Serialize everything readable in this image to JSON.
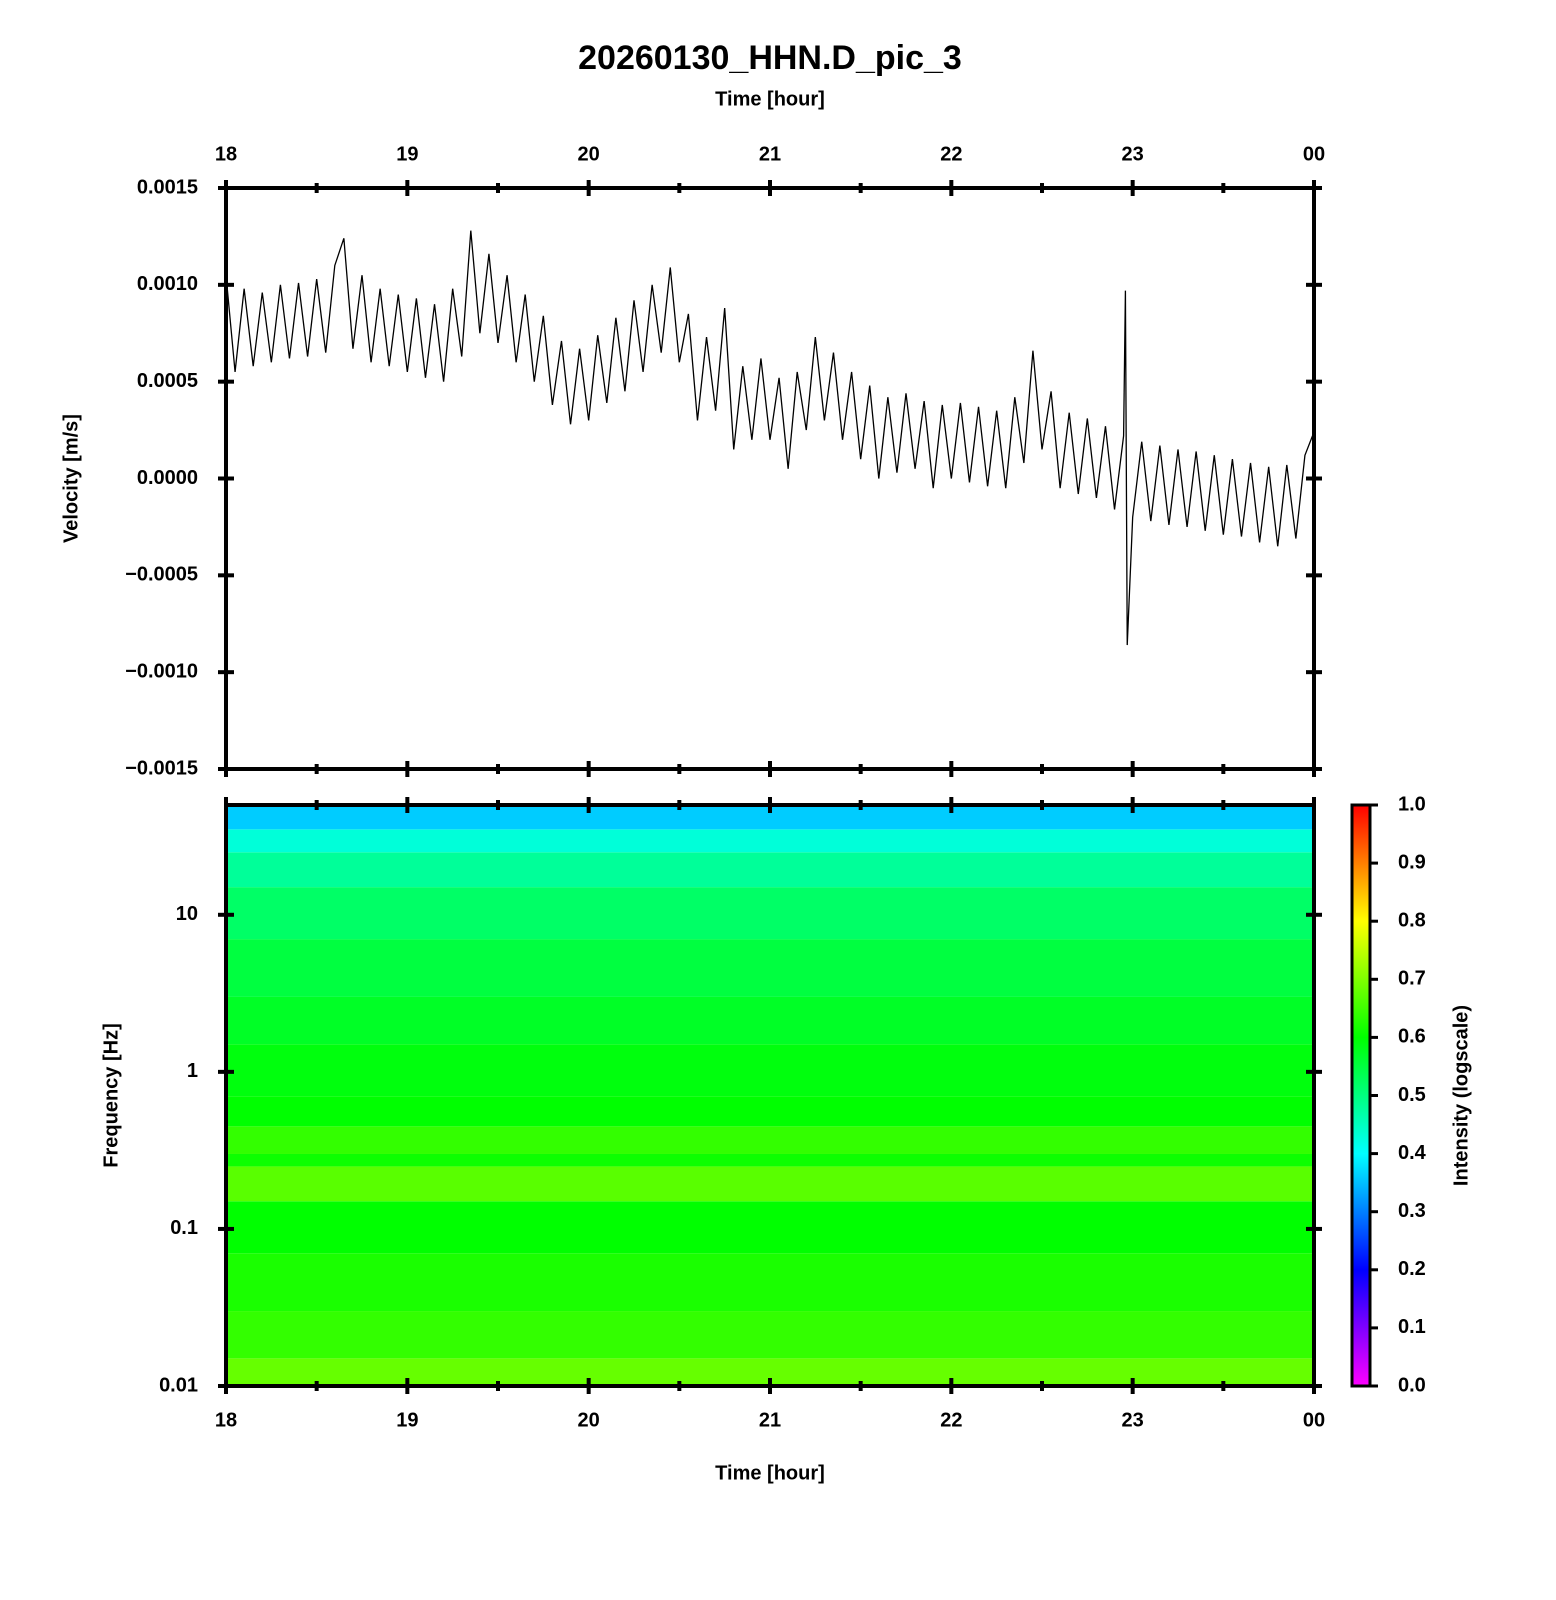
{
  "chart_data": [
    {
      "type": "line",
      "title": "20260130_HHN.D_pic_3",
      "xlabel": "Time [hour]",
      "ylabel": "Velocity [m/s]",
      "color": "#000000",
      "x": [
        18,
        18.05,
        18.1,
        18.15,
        18.2,
        18.25,
        18.3,
        18.35,
        18.4,
        18.45,
        18.5,
        18.55,
        18.6,
        18.65,
        18.7,
        18.75,
        18.8,
        18.85,
        18.9,
        18.95,
        19,
        19.05,
        19.1,
        19.15,
        19.2,
        19.25,
        19.3,
        19.35,
        19.4,
        19.45,
        19.5,
        19.55,
        19.6,
        19.65,
        19.7,
        19.75,
        19.8,
        19.85,
        19.9,
        19.95,
        20,
        20.05,
        20.1,
        20.15,
        20.2,
        20.25,
        20.3,
        20.35,
        20.4,
        20.45,
        20.5,
        20.55,
        20.6,
        20.65,
        20.7,
        20.75,
        20.8,
        20.85,
        20.9,
        20.95,
        21,
        21.05,
        21.1,
        21.15,
        21.2,
        21.25,
        21.3,
        21.35,
        21.4,
        21.45,
        21.5,
        21.55,
        21.6,
        21.65,
        21.7,
        21.75,
        21.8,
        21.85,
        21.9,
        21.95,
        22,
        22.05,
        22.1,
        22.15,
        22.2,
        22.25,
        22.3,
        22.35,
        22.4,
        22.45,
        22.5,
        22.55,
        22.6,
        22.65,
        22.7,
        22.75,
        22.8,
        22.85,
        22.9,
        22.95,
        22.96,
        22.97,
        23,
        23.05,
        23.1,
        23.15,
        23.2,
        23.25,
        23.3,
        23.35,
        23.4,
        23.45,
        23.5,
        23.55,
        23.6,
        23.65,
        23.7,
        23.75,
        23.8,
        23.85,
        23.9,
        23.95,
        24
      ],
      "values": [
        0.00105,
        0.00055,
        0.00098,
        0.00058,
        0.00096,
        0.0006,
        0.001,
        0.00062,
        0.00101,
        0.00063,
        0.00103,
        0.00065,
        0.0011,
        0.00124,
        0.00067,
        0.00105,
        0.0006,
        0.00098,
        0.00058,
        0.00095,
        0.00055,
        0.00093,
        0.00052,
        0.0009,
        0.0005,
        0.00098,
        0.00063,
        0.00128,
        0.00075,
        0.00116,
        0.0007,
        0.00105,
        0.0006,
        0.00095,
        0.0005,
        0.00084,
        0.00038,
        0.00071,
        0.00028,
        0.00067,
        0.0003,
        0.00074,
        0.00039,
        0.00083,
        0.00045,
        0.00092,
        0.00055,
        0.001,
        0.00065,
        0.00109,
        0.0006,
        0.00085,
        0.0003,
        0.00073,
        0.00035,
        0.00088,
        0.00015,
        0.00058,
        0.0002,
        0.00062,
        0.0002,
        0.00052,
        5e-05,
        0.00055,
        0.00025,
        0.00073,
        0.0003,
        0.00065,
        0.0002,
        0.00055,
        0.0001,
        0.00048,
        0,
        0.00042,
        3e-05,
        0.00044,
        5e-05,
        0.0004,
        -5e-05,
        0.00038,
        0,
        0.00039,
        -2e-05,
        0.00037,
        -4e-05,
        0.00035,
        -5e-05,
        0.00042,
        8e-05,
        0.00066,
        0.00015,
        0.00045,
        -5e-05,
        0.00034,
        -8e-05,
        0.00031,
        -0.0001,
        0.00027,
        -0.00016,
        0.00022,
        0.00097,
        -0.00086,
        -0.0002,
        0.00019,
        -0.00022,
        0.00017,
        -0.00024,
        0.00015,
        -0.00025,
        0.00014,
        -0.00027,
        0.00012,
        -0.00029,
        0.0001,
        -0.0003,
        8e-05,
        -0.00033,
        6e-05,
        -0.00035,
        7e-05,
        -0.00031,
        0.00012,
        0.00024
      ],
      "xlim": [
        18,
        24
      ],
      "xticks": [
        18,
        19,
        20,
        21,
        22,
        23,
        {
          "value": 24,
          "label": "00"
        }
      ],
      "xminorticks": [
        18.5,
        19.5,
        20.5,
        21.5,
        22.5,
        23.5
      ],
      "ylim": [
        -0.0015,
        0.0015
      ],
      "yticks": [
        {
          "value": -0.0015,
          "label": "−0.0015"
        },
        {
          "value": -0.001,
          "label": "−0.0010"
        },
        {
          "value": -0.0005,
          "label": "−0.0005"
        },
        {
          "value": 0,
          "label": "0.0000"
        },
        0.0005,
        {
          "value": 0.001,
          "label": "0.0010"
        },
        0.0015
      ]
    },
    {
      "type": "heatmap",
      "xlabel": "Time [hour]",
      "ylabel": "Frequency [Hz]",
      "log_y": true,
      "y": [
        0.01,
        0.015,
        0.03,
        0.07,
        0.15,
        0.25,
        0.3,
        0.45,
        0.7,
        1.5,
        3,
        7,
        15,
        25,
        35,
        50
      ],
      "values": [
        0.68,
        0.64,
        0.62,
        0.6,
        0.67,
        0.61,
        0.64,
        0.6,
        0.59,
        0.57,
        0.55,
        0.52,
        0.48,
        0.43,
        0.36
      ],
      "xlim": [
        18,
        24
      ],
      "xticks": [
        18,
        19,
        20,
        21,
        22,
        23,
        {
          "value": 24,
          "label": "00"
        }
      ],
      "xminorticks": [
        18.5,
        19.5,
        20.5,
        21.5,
        22.5,
        23.5
      ],
      "ylim": [
        0.01,
        50
      ],
      "yticks": [
        0.01,
        0.1,
        1,
        10
      ],
      "colorbar_label": "Intensity (logscale)",
      "zlim": [
        0,
        1
      ],
      "zticks": [
        {
          "value": 0,
          "label": "0.0"
        },
        0.1,
        0.2,
        0.3,
        0.4,
        0.5,
        0.6,
        0.7,
        0.8,
        0.9,
        {
          "value": 1,
          "label": "1.0"
        }
      ],
      "colorscale": [
        "#ff00ff",
        "#0000ff",
        "#00ffff",
        "#00ff00",
        "#ffff00",
        "#ff0000"
      ]
    }
  ]
}
